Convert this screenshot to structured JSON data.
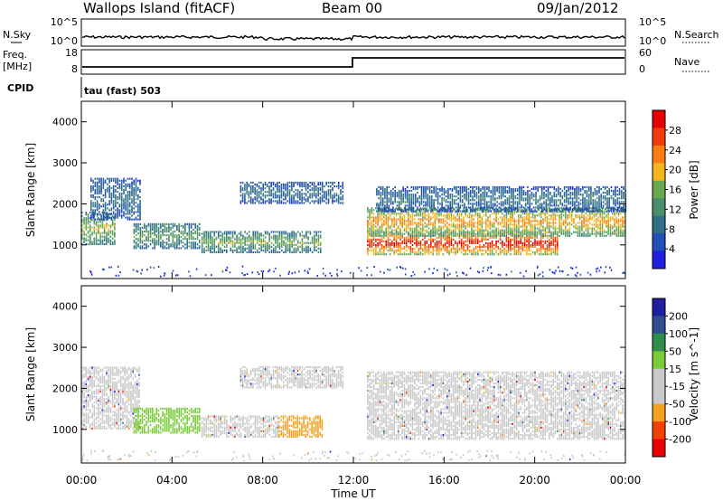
{
  "header": {
    "site": "Wallops Island (fitACF)",
    "beam": "Beam 00",
    "date": "09/Jan/2012"
  },
  "top_panels": {
    "nsky_label": "N.Sky",
    "nsearch_label": "N.Search",
    "noise_ticks_left": [
      "10^5",
      "10^0"
    ],
    "noise_ticks_right": [
      "10^5",
      "10^0"
    ],
    "freq_label": "Freq.",
    "freq_unit": "[MHz]",
    "freq_ticks": [
      "18",
      "8"
    ],
    "nave_label": "Nave",
    "nave_ticks": [
      "60",
      "0"
    ],
    "cpid_label": "CPID",
    "cpid_value": "tau (fast) 503"
  },
  "colors": {
    "power_scale": [
      "#1f1fe0",
      "#2350b4",
      "#2e7088",
      "#4a8f6a",
      "#6aa950",
      "#f5b520",
      "#f77f14",
      "#f23a0a",
      "#e60000"
    ],
    "velocity_scale": [
      "#e80000",
      "#f24000",
      "#f5a020",
      "#c9c9c9",
      "#c9c9c9",
      "#7acc3a",
      "#2e8e4a",
      "#2e5090",
      "#1f1fa0"
    ]
  },
  "chart_data": [
    {
      "type": "heatmap",
      "name": "power",
      "ylabel": "Slant Range [km]",
      "xlabel": "",
      "ylim": [
        180,
        4500
      ],
      "yticks": [
        "1000",
        "2000",
        "3000",
        "4000"
      ],
      "colorbar_label": "Power [dB]",
      "colorbar_ticks": [
        "4",
        "8",
        "12",
        "16",
        "20",
        "24",
        "28"
      ],
      "colorbar_range": [
        0,
        32
      ],
      "bands": [
        {
          "t0": 0.0,
          "t1": 1.5,
          "r0": 1000,
          "r1": 1800,
          "level": 0.55
        },
        {
          "t0": 0.4,
          "t1": 2.6,
          "r0": 1600,
          "r1": 2600,
          "level": 0.3
        },
        {
          "t0": 2.3,
          "t1": 5.2,
          "r0": 900,
          "r1": 1500,
          "level": 0.45
        },
        {
          "t0": 5.3,
          "t1": 10.6,
          "r0": 800,
          "r1": 1300,
          "level": 0.5
        },
        {
          "t0": 7.0,
          "t1": 11.5,
          "r0": 2000,
          "r1": 2500,
          "level": 0.3
        },
        {
          "t0": 12.6,
          "t1": 21.0,
          "r0": 750,
          "r1": 1300,
          "level": 0.92
        },
        {
          "t0": 12.6,
          "t1": 24.0,
          "r0": 1200,
          "r1": 1900,
          "level": 0.7
        },
        {
          "t0": 13.0,
          "t1": 24.0,
          "r0": 1800,
          "r1": 2400,
          "level": 0.3
        }
      ]
    },
    {
      "type": "heatmap",
      "name": "velocity",
      "ylabel": "Slant Range [km]",
      "xlabel": "Time UT",
      "xlim": [
        0,
        24
      ],
      "xticks": [
        "00:00",
        "04:00",
        "08:00",
        "12:00",
        "16:00",
        "20:00",
        "00:00"
      ],
      "ylim": [
        180,
        4500
      ],
      "yticks": [
        "1000",
        "2000",
        "3000",
        "4000"
      ],
      "colorbar_label": "Velocity [m s^-1]",
      "colorbar_ticks": [
        "-200",
        "-100",
        "-50",
        "-15",
        "15",
        "50",
        "100",
        "200"
      ],
      "bands": [
        {
          "t0": 0.0,
          "t1": 2.6,
          "r0": 1000,
          "r1": 2500,
          "vel": 0
        },
        {
          "t0": 2.3,
          "t1": 5.2,
          "r0": 900,
          "r1": 1500,
          "vel": 40
        },
        {
          "t0": 5.3,
          "t1": 8.7,
          "r0": 800,
          "r1": 1300,
          "vel": 0
        },
        {
          "t0": 8.7,
          "t1": 10.6,
          "r0": 800,
          "r1": 1300,
          "vel": -60
        },
        {
          "t0": 7.0,
          "t1": 11.5,
          "r0": 2000,
          "r1": 2500,
          "vel": 0
        },
        {
          "t0": 12.6,
          "t1": 24.0,
          "r0": 750,
          "r1": 2400,
          "vel": 0
        }
      ]
    }
  ]
}
